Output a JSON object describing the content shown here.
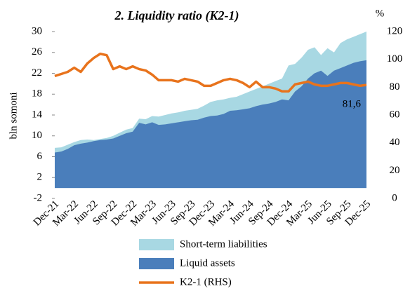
{
  "chart_data": {
    "type": "area",
    "title": "2. Liquidity ratio (K2-1)",
    "ylabel": "bln somoni",
    "y2label": "%",
    "categories": [
      "Dec-21",
      null,
      null,
      "Mar-22",
      null,
      null,
      "Jun-22",
      null,
      null,
      "Sep-22",
      null,
      null,
      "Dec-22",
      null,
      null,
      "Mar-23",
      null,
      null,
      "Jun-23",
      null,
      null,
      "Sep-23",
      null,
      null,
      "Dec-23",
      null,
      null,
      "Mar-24",
      null,
      null,
      "Jun-24",
      null,
      null,
      "Sep-24",
      null,
      null,
      "Dec-24",
      null,
      null,
      "Mar-25",
      null,
      null,
      "Jun-25",
      null,
      null,
      "Sep-25",
      null,
      null,
      "Dec-25"
    ],
    "ylim": [
      -2,
      30
    ],
    "yticks": [
      -2,
      2,
      6,
      10,
      14,
      18,
      22,
      26,
      30
    ],
    "y2lim": [
      0,
      120
    ],
    "y2ticks": [
      0,
      20,
      40,
      60,
      80,
      100,
      120
    ],
    "series": [
      {
        "name": "Short-term liabilities",
        "type": "area",
        "color": "#a8d8e3",
        "values": [
          7.7,
          7.8,
          8.3,
          8.8,
          9.2,
          9.3,
          9.2,
          9.4,
          9.6,
          10.0,
          10.6,
          11.2,
          11.5,
          13.3,
          13.2,
          13.8,
          13.7,
          14.0,
          14.3,
          14.5,
          14.8,
          15.0,
          15.2,
          15.8,
          16.5,
          16.8,
          17.0,
          17.3,
          17.5,
          18.0,
          18.5,
          19.0,
          19.5,
          20.0,
          20.5,
          21.0,
          23.5,
          23.8,
          25.0,
          26.5,
          27.0,
          25.5,
          26.8,
          26.0,
          27.8,
          28.5,
          29.0,
          29.5,
          30.0
        ]
      },
      {
        "name": "Liquid assets",
        "type": "area",
        "color": "#4a7ebb",
        "values": [
          6.8,
          7.0,
          7.5,
          8.2,
          8.5,
          8.7,
          9.0,
          9.2,
          9.3,
          9.5,
          10.0,
          10.5,
          10.8,
          12.5,
          12.2,
          12.6,
          12.1,
          12.2,
          12.4,
          12.6,
          12.8,
          13.0,
          13.1,
          13.5,
          13.8,
          13.9,
          14.2,
          14.8,
          14.9,
          15.1,
          15.3,
          15.7,
          16.0,
          16.2,
          16.5,
          17.0,
          16.8,
          18.5,
          19.5,
          21.0,
          22.0,
          22.5,
          21.5,
          22.5,
          23.0,
          23.5,
          24.0,
          24.3,
          24.5
        ]
      },
      {
        "name": "K2-1 (RHS)",
        "type": "line",
        "axis": "y2",
        "color": "#e8731c",
        "values": [
          88,
          89.5,
          91,
          94,
          91,
          97,
          101,
          104,
          103,
          93,
          95,
          93,
          95,
          93,
          92,
          89,
          85,
          85,
          85,
          84,
          86,
          85,
          84,
          81,
          81,
          83,
          85,
          86,
          85,
          83,
          80,
          84,
          80,
          80,
          79,
          77,
          77,
          82,
          83,
          84,
          82,
          81,
          81,
          82,
          83,
          83,
          82,
          81,
          81.6
        ],
        "value_labels": [
          null,
          null,
          null,
          null,
          null,
          null,
          null,
          null,
          null,
          null,
          null,
          null,
          null,
          null,
          null,
          null,
          null,
          null,
          null,
          null,
          null,
          null,
          null,
          null,
          null,
          null,
          null,
          null,
          null,
          null,
          null,
          null,
          null,
          null,
          null,
          null,
          null,
          null,
          null,
          null,
          null,
          null,
          null,
          null,
          null,
          null,
          null,
          null,
          "81,6"
        ]
      }
    ]
  }
}
